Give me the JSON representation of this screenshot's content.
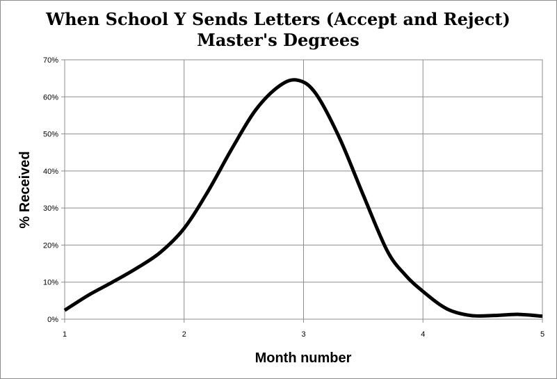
{
  "chart_data": {
    "type": "line",
    "title": "When School Y Sends Letters (Accept and Reject)",
    "subtitle": "Master's Degrees",
    "xlabel": "Month number",
    "ylabel": "% Received",
    "xlim": [
      1,
      5
    ],
    "ylim": [
      0,
      0.7
    ],
    "x_ticks": [
      "1",
      "2",
      "3",
      "4",
      "5"
    ],
    "y_ticks": [
      "0%",
      "10%",
      "20%",
      "30%",
      "40%",
      "50%",
      "60%",
      "70%"
    ],
    "grid": true,
    "legend": "none",
    "series": [
      {
        "color": "#000000",
        "x": [
          1.0,
          1.2,
          1.4,
          1.6,
          1.8,
          2.0,
          2.2,
          2.4,
          2.6,
          2.8,
          2.95,
          3.1,
          3.3,
          3.5,
          3.7,
          3.85,
          4.0,
          4.2,
          4.4,
          4.6,
          4.8,
          5.0
        ],
        "y": [
          0.024,
          0.065,
          0.1,
          0.137,
          0.18,
          0.245,
          0.345,
          0.46,
          0.565,
          0.63,
          0.645,
          0.61,
          0.49,
          0.335,
          0.185,
          0.12,
          0.075,
          0.028,
          0.01,
          0.01,
          0.013,
          0.008
        ]
      }
    ]
  }
}
